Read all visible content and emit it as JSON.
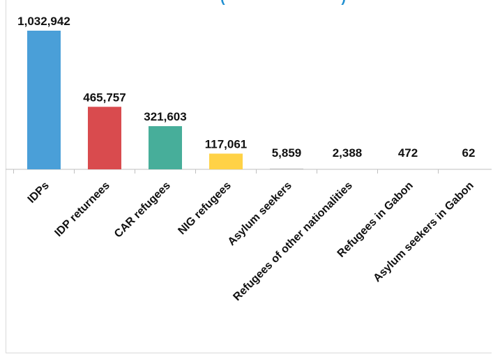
{
  "chart_data": {
    "type": "bar",
    "title_fragment": "(                              )",
    "categories": [
      "IDPs",
      "IDP returnees",
      "CAR refugees",
      "NIG refugees",
      "Asylum seekers",
      "Refugees of other nationalities",
      "Refugees in Gabon",
      "Asylum seekers in Gabon"
    ],
    "values": [
      1032942,
      465757,
      321603,
      117061,
      5859,
      2388,
      472,
      62
    ],
    "value_labels": [
      "1,032,942",
      "465,757",
      "321,603",
      "117,061",
      "5,859",
      "2,388",
      "472",
      "62"
    ],
    "colors": [
      "#4a9fd8",
      "#d94b4e",
      "#47ae9a",
      "#ffd246",
      "#bfbfbf",
      "#bfbfbf",
      "#bfbfbf",
      "#bfbfbf"
    ],
    "ylim": [
      0,
      1032942
    ],
    "grid": false,
    "legend": "none"
  }
}
